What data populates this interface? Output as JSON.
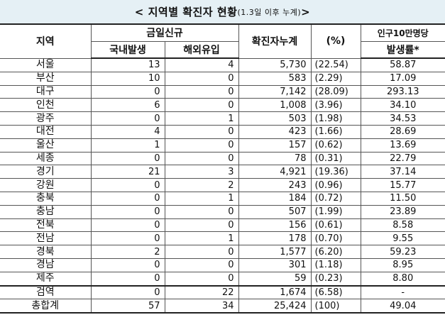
{
  "title": {
    "main": "< 지역별 확진자 현황",
    "sub": "(1.3일 이후 누계)",
    "end": " >"
  },
  "headers": {
    "region": "지역",
    "new_today": "금일신규",
    "domestic": "국내발생",
    "imported": "해외유입",
    "cumulative": "확진자누계",
    "percent": "(%)",
    "rate_line1": "인구10만명당",
    "rate_line2": "발생률*"
  },
  "rows": [
    {
      "region": "서울",
      "domestic": "13",
      "imported": "4",
      "cumulative": "5,730",
      "percent": "(22.54)",
      "rate": "58.87"
    },
    {
      "region": "부산",
      "domestic": "10",
      "imported": "0",
      "cumulative": "583",
      "percent": "(2.29)",
      "rate": "17.09"
    },
    {
      "region": "대구",
      "domestic": "0",
      "imported": "0",
      "cumulative": "7,142",
      "percent": "(28.09)",
      "rate": "293.13"
    },
    {
      "region": "인천",
      "domestic": "6",
      "imported": "0",
      "cumulative": "1,008",
      "percent": "(3.96)",
      "rate": "34.10"
    },
    {
      "region": "광주",
      "domestic": "0",
      "imported": "1",
      "cumulative": "503",
      "percent": "(1.98)",
      "rate": "34.53"
    },
    {
      "region": "대전",
      "domestic": "4",
      "imported": "0",
      "cumulative": "423",
      "percent": "(1.66)",
      "rate": "28.69"
    },
    {
      "region": "울산",
      "domestic": "1",
      "imported": "0",
      "cumulative": "157",
      "percent": "(0.62)",
      "rate": "13.69"
    },
    {
      "region": "세종",
      "domestic": "0",
      "imported": "0",
      "cumulative": "78",
      "percent": "(0.31)",
      "rate": "22.79"
    },
    {
      "region": "경기",
      "domestic": "21",
      "imported": "3",
      "cumulative": "4,921",
      "percent": "(19.36)",
      "rate": "37.14"
    },
    {
      "region": "강원",
      "domestic": "0",
      "imported": "2",
      "cumulative": "243",
      "percent": "(0.96)",
      "rate": "15.77"
    },
    {
      "region": "충북",
      "domestic": "0",
      "imported": "1",
      "cumulative": "184",
      "percent": "(0.72)",
      "rate": "11.50"
    },
    {
      "region": "충남",
      "domestic": "0",
      "imported": "0",
      "cumulative": "507",
      "percent": "(1.99)",
      "rate": "23.89"
    },
    {
      "region": "전북",
      "domestic": "0",
      "imported": "0",
      "cumulative": "156",
      "percent": "(0.61)",
      "rate": "8.58"
    },
    {
      "region": "전남",
      "domestic": "0",
      "imported": "1",
      "cumulative": "178",
      "percent": "(0.70)",
      "rate": "9.55"
    },
    {
      "region": "경북",
      "domestic": "2",
      "imported": "0",
      "cumulative": "1,577",
      "percent": "(6.20)",
      "rate": "59.23"
    },
    {
      "region": "경남",
      "domestic": "0",
      "imported": "0",
      "cumulative": "301",
      "percent": "(1.18)",
      "rate": "8.95"
    },
    {
      "region": "제주",
      "domestic": "0",
      "imported": "0",
      "cumulative": "59",
      "percent": "(0.23)",
      "rate": "8.80"
    },
    {
      "region": "검역",
      "domestic": "0",
      "imported": "22",
      "cumulative": "1,674",
      "percent": "(6.58)",
      "rate": "-"
    },
    {
      "region": "총합계",
      "domestic": "57",
      "imported": "34",
      "cumulative": "25,424",
      "percent": "(100)",
      "rate": "49.04"
    }
  ]
}
